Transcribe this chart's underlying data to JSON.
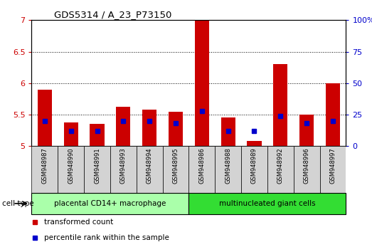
{
  "title": "GDS5314 / A_23_P73150",
  "samples": [
    "GSM948987",
    "GSM948990",
    "GSM948991",
    "GSM948993",
    "GSM948994",
    "GSM948995",
    "GSM948986",
    "GSM948988",
    "GSM948989",
    "GSM948992",
    "GSM948996",
    "GSM948997"
  ],
  "transformed_count": [
    5.9,
    5.38,
    5.35,
    5.63,
    5.58,
    5.55,
    7.0,
    5.45,
    5.08,
    6.3,
    5.5,
    6.0
  ],
  "percentile_rank": [
    20,
    12,
    12,
    20,
    20,
    18,
    28,
    12,
    12,
    24,
    18,
    20
  ],
  "group1_label": "placental CD14+ macrophage",
  "group2_label": "multinucleated giant cells",
  "group1_count": 6,
  "group2_count": 6,
  "ylim_left": [
    5.0,
    7.0
  ],
  "ylim_right": [
    0,
    100
  ],
  "yticks_left": [
    5.0,
    5.5,
    6.0,
    6.5,
    7.0
  ],
  "yticks_right": [
    0,
    25,
    50,
    75,
    100
  ],
  "bar_color": "#cc0000",
  "percentile_color": "#0000cc",
  "bar_bottom": 5.0,
  "bar_width": 0.55,
  "grid_color": "#000000",
  "bg_color": "#ffffff",
  "tick_label_color_left": "#cc0000",
  "tick_label_color_right": "#0000cc",
  "legend_red_label": "transformed count",
  "legend_blue_label": "percentile rank within the sample",
  "cell_type_label": "cell type",
  "group1_bg": "#aaffaa",
  "group2_bg": "#33dd33",
  "xticklabel_bg": "#d3d3d3"
}
